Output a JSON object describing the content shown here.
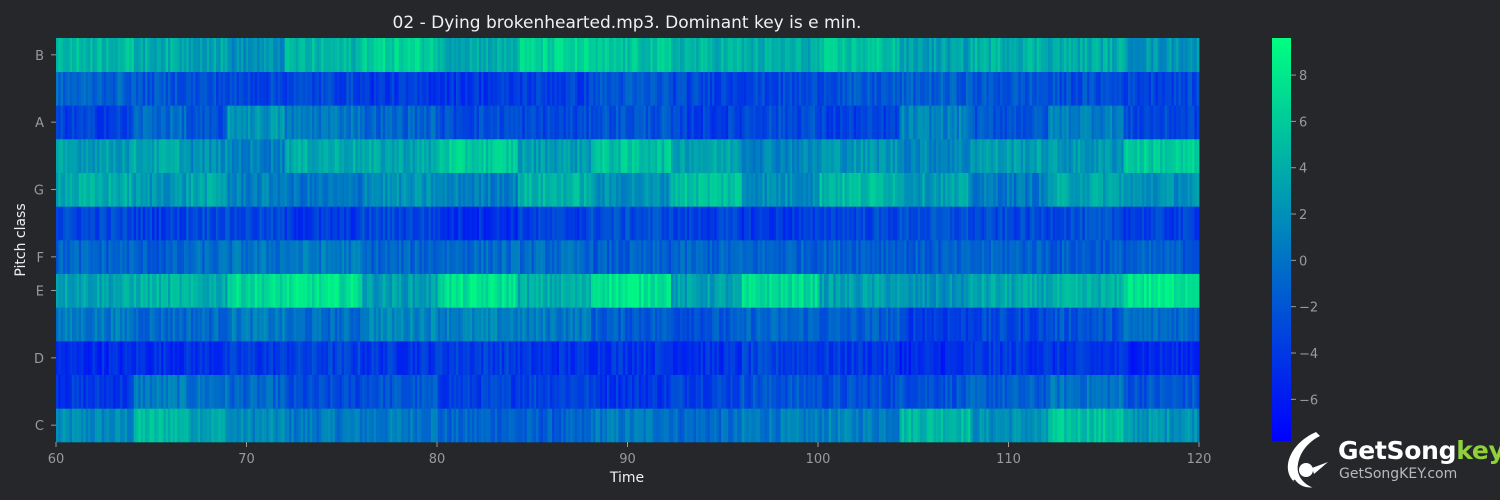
{
  "chart_data": {
    "type": "heatmap",
    "title": "02 - Dying brokenhearted.mp3. Dominant key is e min.",
    "xlabel": "Time",
    "ylabel": "Pitch class",
    "xlim": [
      60,
      120
    ],
    "x_ticks": [
      "60",
      "70",
      "80",
      "90",
      "100",
      "110",
      "120"
    ],
    "x_tick_values": [
      60,
      70,
      80,
      90,
      100,
      110,
      120
    ],
    "rows": [
      "C",
      "C#",
      "D",
      "D#",
      "E",
      "F",
      "F#",
      "G",
      "G#",
      "A",
      "A#",
      "B"
    ],
    "y_tick_labels": [
      {
        "row": "C",
        "label": "C"
      },
      {
        "row": "D",
        "label": "D"
      },
      {
        "row": "E",
        "label": "E"
      },
      {
        "row": "F",
        "label": "F"
      },
      {
        "row": "G",
        "label": "G"
      },
      {
        "row": "A",
        "label": "A"
      },
      {
        "row": "B",
        "label": "B"
      }
    ],
    "colorbar": {
      "range": [
        -7.8,
        9.6
      ],
      "ticks": [
        -6,
        -4,
        -2,
        0,
        2,
        4,
        6,
        8
      ],
      "tick_labels": [
        "−6",
        "−4",
        "−2",
        "0",
        "2",
        "4",
        "6",
        "8"
      ],
      "colors": [
        "#0000ff",
        "#00ff80"
      ]
    },
    "segments": [
      60,
      64,
      66.8,
      69,
      72,
      76,
      80,
      84.2,
      88,
      92.2,
      96,
      100,
      104.2,
      108,
      112,
      116,
      120
    ],
    "row_levels": {
      "C": [
        1.5,
        5.0,
        3.5,
        1.5,
        0.5,
        0.5,
        -1.0,
        -1.5,
        0.5,
        -0.5,
        0.5,
        1.0,
        5.0,
        2.0,
        5.5,
        2.5
      ],
      "C#": [
        -4.0,
        0.5,
        0.0,
        -1.0,
        -3.0,
        -2.0,
        -3.5,
        -3.0,
        -4.0,
        -3.0,
        -2.0,
        -2.5,
        -2.0,
        -1.5,
        0.0,
        -2.0
      ],
      "D": [
        -5.0,
        -4.5,
        -4.5,
        -4.0,
        -3.5,
        -4.0,
        -3.5,
        -4.5,
        -4.0,
        -4.5,
        -3.5,
        -4.0,
        -5.0,
        -4.0,
        -4.5,
        -5.0
      ],
      "D#": [
        0.5,
        -0.5,
        -0.5,
        0.5,
        -0.5,
        1.5,
        1.0,
        0.5,
        -1.5,
        -2.0,
        -1.0,
        -1.5,
        -3.5,
        -3.0,
        -2.0,
        -0.5
      ],
      "E": [
        3.5,
        4.5,
        4.0,
        7.0,
        7.5,
        3.0,
        7.5,
        4.0,
        8.0,
        3.0,
        7.0,
        3.0,
        2.0,
        3.5,
        4.0,
        8.0
      ],
      "F": [
        -1.0,
        -1.5,
        -0.5,
        0.0,
        0.5,
        -1.0,
        -0.5,
        -0.5,
        -1.5,
        -1.0,
        -1.0,
        -1.0,
        -1.5,
        -1.0,
        -1.5,
        -1.5
      ],
      "F#": [
        -3.0,
        -3.5,
        -2.5,
        -3.0,
        -4.0,
        -3.0,
        -4.5,
        -3.5,
        -2.5,
        -3.5,
        -4.0,
        -3.0,
        -2.5,
        -3.0,
        -2.5,
        -3.5
      ],
      "G": [
        4.0,
        2.5,
        3.5,
        1.0,
        0.0,
        2.0,
        1.0,
        4.5,
        2.0,
        5.5,
        2.0,
        5.0,
        3.0,
        0.5,
        3.5,
        2.0
      ],
      "G#": [
        3.0,
        3.5,
        2.0,
        1.0,
        4.0,
        3.5,
        6.0,
        3.0,
        5.5,
        3.5,
        1.5,
        2.5,
        1.5,
        3.0,
        2.5,
        6.0
      ],
      "A": [
        -3.5,
        -0.5,
        -2.5,
        2.5,
        0.5,
        -1.0,
        -2.5,
        -3.0,
        -2.0,
        -3.5,
        -2.5,
        -3.5,
        1.0,
        -2.0,
        1.0,
        -3.0
      ],
      "A#": [
        -1.0,
        -2.0,
        -2.5,
        -3.0,
        -3.0,
        -4.0,
        -4.0,
        -3.5,
        -2.0,
        -3.0,
        -3.0,
        -2.0,
        -1.5,
        -2.0,
        -2.5,
        -3.0
      ],
      "B": [
        5.0,
        4.0,
        3.5,
        2.0,
        4.5,
        6.5,
        4.0,
        6.5,
        5.5,
        4.5,
        4.0,
        5.5,
        3.0,
        4.5,
        4.0,
        2.5
      ]
    }
  },
  "watermark": {
    "name_main": "GetSong",
    "name_accent": "key",
    "url": "GetSongKEY.com"
  }
}
